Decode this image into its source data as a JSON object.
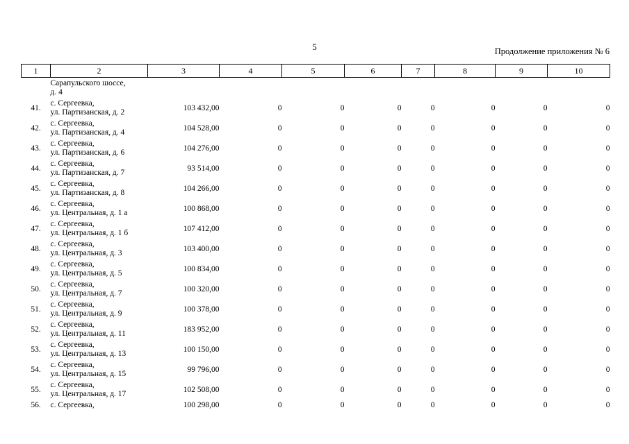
{
  "page": {
    "number": "5",
    "continuation": "Продолжение приложения № 6"
  },
  "table": {
    "columns": [
      "1",
      "2",
      "3",
      "4",
      "5",
      "6",
      "7",
      "8",
      "9",
      "10"
    ],
    "carryover": {
      "line1": "Сарапульского шоссе,",
      "line2": "д. 4"
    },
    "rows": [
      {
        "num": "41.",
        "addr1": "с. Сергеевка,",
        "addr2": "ул. Партизанская, д. 2",
        "value": "103 432,00",
        "zeros": [
          "0",
          "0",
          "0",
          "0",
          "0",
          "0",
          "0"
        ]
      },
      {
        "num": "42.",
        "addr1": "с. Сергеевка,",
        "addr2": "ул. Партизанская, д. 4",
        "value": "104 528,00",
        "zeros": [
          "0",
          "0",
          "0",
          "0",
          "0",
          "0",
          "0"
        ]
      },
      {
        "num": "43.",
        "addr1": "с. Сергеевка,",
        "addr2": "ул. Партизанская, д. 6",
        "value": "104 276,00",
        "zeros": [
          "0",
          "0",
          "0",
          "0",
          "0",
          "0",
          "0"
        ]
      },
      {
        "num": "44.",
        "addr1": "с. Сергеевка,",
        "addr2": "ул. Партизанская, д. 7",
        "value": "93 514,00",
        "zeros": [
          "0",
          "0",
          "0",
          "0",
          "0",
          "0",
          "0"
        ]
      },
      {
        "num": "45.",
        "addr1": "с. Сергеевка,",
        "addr2": "ул. Партизанская, д. 8",
        "value": "104 266,00",
        "zeros": [
          "0",
          "0",
          "0",
          "0",
          "0",
          "0",
          "0"
        ]
      },
      {
        "num": "46.",
        "addr1": "с. Сергеевка,",
        "addr2": "ул. Центральная, д. 1 а",
        "value": "100 868,00",
        "zeros": [
          "0",
          "0",
          "0",
          "0",
          "0",
          "0",
          "0"
        ]
      },
      {
        "num": "47.",
        "addr1": "с. Сергеевка,",
        "addr2": "ул. Центральная, д. 1 б",
        "value": "107 412,00",
        "zeros": [
          "0",
          "0",
          "0",
          "0",
          "0",
          "0",
          "0"
        ]
      },
      {
        "num": "48.",
        "addr1": "с. Сергеевка,",
        "addr2": "ул. Центральная, д. 3",
        "value": "103 400,00",
        "zeros": [
          "0",
          "0",
          "0",
          "0",
          "0",
          "0",
          "0"
        ]
      },
      {
        "num": "49.",
        "addr1": "с. Сергеевка,",
        "addr2": "ул. Центральная, д. 5",
        "value": "100 834,00",
        "zeros": [
          "0",
          "0",
          "0",
          "0",
          "0",
          "0",
          "0"
        ]
      },
      {
        "num": "50.",
        "addr1": "с. Сергеевка,",
        "addr2": "ул. Центральная, д. 7",
        "value": "100 320,00",
        "zeros": [
          "0",
          "0",
          "0",
          "0",
          "0",
          "0",
          "0"
        ]
      },
      {
        "num": "51.",
        "addr1": "с. Сергеевка,",
        "addr2": "ул. Центральная, д. 9",
        "value": "100 378,00",
        "zeros": [
          "0",
          "0",
          "0",
          "0",
          "0",
          "0",
          "0"
        ]
      },
      {
        "num": "52.",
        "addr1": "с. Сергеевка,",
        "addr2": "ул. Центральная, д. 11",
        "value": "183 952,00",
        "zeros": [
          "0",
          "0",
          "0",
          "0",
          "0",
          "0",
          "0"
        ]
      },
      {
        "num": "53.",
        "addr1": "с. Сергеевка,",
        "addr2": "ул. Центральная, д. 13",
        "value": "100 150,00",
        "zeros": [
          "0",
          "0",
          "0",
          "0",
          "0",
          "0",
          "0"
        ]
      },
      {
        "num": "54.",
        "addr1": "с. Сергеевка,",
        "addr2": "ул. Центральная, д. 15",
        "value": "99 796,00",
        "zeros": [
          "0",
          "0",
          "0",
          "0",
          "0",
          "0",
          "0"
        ]
      },
      {
        "num": "55.",
        "addr1": "с. Сергеевка,",
        "addr2": "ул. Центральная, д. 17",
        "value": "102 508,00",
        "zeros": [
          "0",
          "0",
          "0",
          "0",
          "0",
          "0",
          "0"
        ]
      },
      {
        "num": "56.",
        "addr1": "с. Сергеевка,",
        "addr2": "",
        "value": "100 298,00",
        "zeros": [
          "0",
          "0",
          "0",
          "0",
          "0",
          "0",
          "0"
        ]
      }
    ]
  }
}
